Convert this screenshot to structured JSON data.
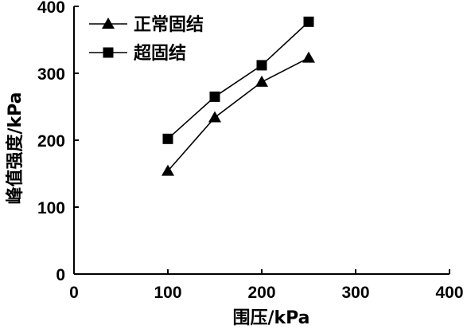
{
  "chart_data": {
    "type": "line",
    "title": "",
    "xlabel": "围压/kPa",
    "ylabel": "峰值强度/kPa",
    "xlim": [
      0,
      400
    ],
    "ylim": [
      0,
      400
    ],
    "xticks": [
      0,
      100,
      200,
      300,
      400
    ],
    "yticks": [
      0,
      100,
      200,
      300,
      400
    ],
    "grid": false,
    "legend_position": "top-left",
    "series": [
      {
        "name": "正常固结",
        "marker": "triangle",
        "color": "#000000",
        "x": [
          100,
          150,
          200,
          250
        ],
        "y": [
          154,
          234,
          287,
          323
        ]
      },
      {
        "name": "超固结",
        "marker": "square",
        "color": "#000000",
        "x": [
          100,
          150,
          200,
          250
        ],
        "y": [
          202,
          265,
          312,
          377
        ]
      }
    ]
  }
}
